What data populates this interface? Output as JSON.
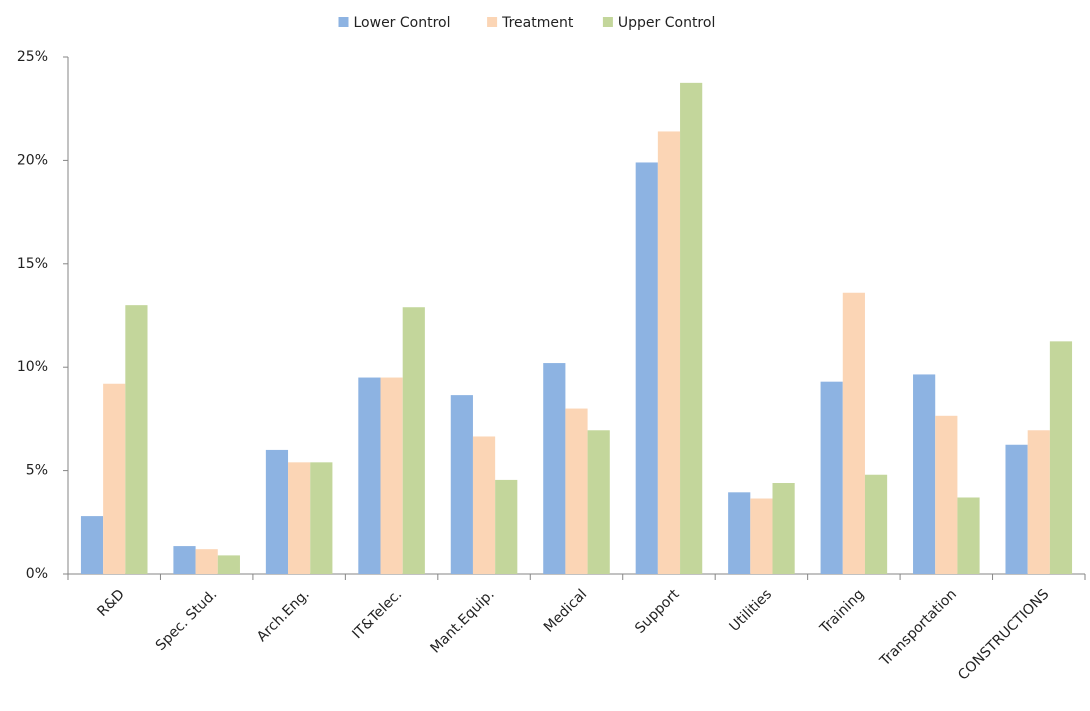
{
  "chart_data": {
    "type": "bar",
    "categories": [
      "R&D",
      "Spec. Stud.",
      "Arch.Eng.",
      "IT&Telec.",
      "Mant.Equip.",
      "Medical",
      "Support",
      "Utilities",
      "Training",
      "Transportation",
      "CONSTRUCTIONS"
    ],
    "series": [
      {
        "name": "Lower Control",
        "color": "#8db3e2",
        "values": [
          2.8,
          1.35,
          6.0,
          9.5,
          8.65,
          10.2,
          19.9,
          3.95,
          9.3,
          9.65,
          6.25
        ]
      },
      {
        "name": "Treatment",
        "color": "#fbd5b5",
        "values": [
          9.2,
          1.2,
          5.4,
          9.5,
          6.65,
          8.0,
          21.4,
          3.65,
          13.6,
          7.65,
          6.95
        ]
      },
      {
        "name": "Upper Control",
        "color": "#c3d69b",
        "values": [
          13.0,
          0.9,
          5.4,
          12.9,
          4.55,
          6.95,
          23.75,
          4.4,
          4.8,
          3.7,
          11.25
        ]
      }
    ],
    "ylim": [
      0,
      25
    ],
    "yticks": [
      {
        "value": 0,
        "label": "0%"
      },
      {
        "value": 5,
        "label": "5%"
      },
      {
        "value": 10,
        "label": "10%"
      },
      {
        "value": 15,
        "label": "15%"
      },
      {
        "value": 20,
        "label": "20%"
      },
      {
        "value": 25,
        "label": "25%"
      }
    ],
    "grid": false,
    "legend": "top"
  }
}
